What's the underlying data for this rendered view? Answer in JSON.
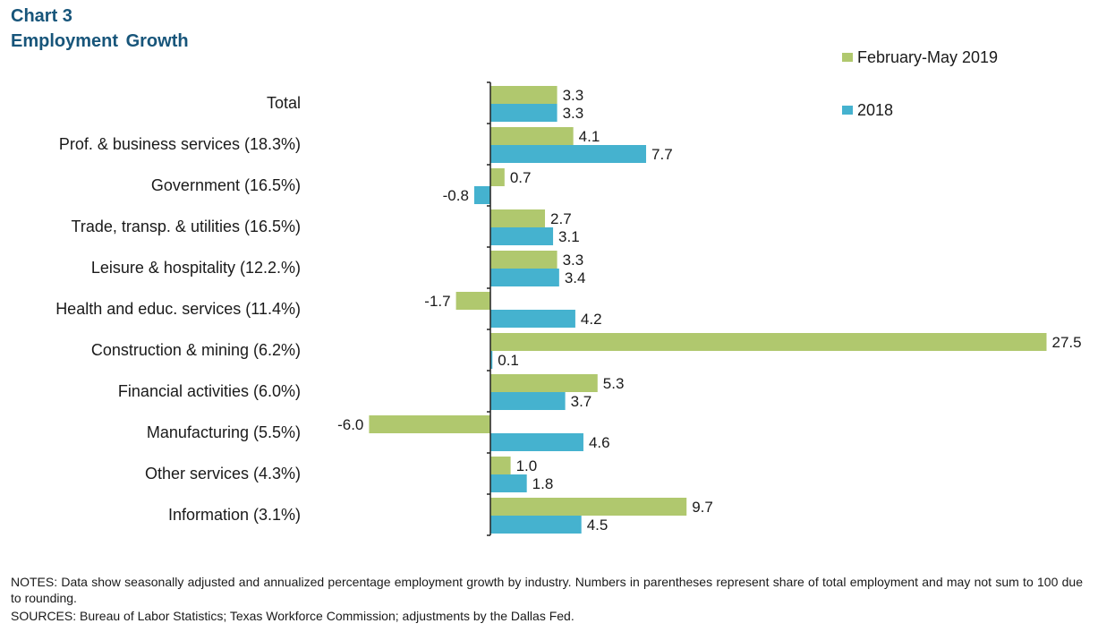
{
  "header": {
    "chart_label": "Chart 3",
    "title": "Employment  Growth"
  },
  "colors": {
    "series_1": "#b0c86e",
    "series_2": "#45b2cf",
    "title": "#17557a",
    "axis": "#222222"
  },
  "chart_data": {
    "type": "bar",
    "orientation": "horizontal",
    "title": "Employment Growth",
    "xlabel": "",
    "ylabel": "",
    "xlim": [
      -6.5,
      27.5
    ],
    "grid": false,
    "legend_position": "top-right",
    "categories": [
      "Total",
      "Prof. & business services (18.3%)",
      "Government (16.5%)",
      "Trade, transp. & utilities (16.5%)",
      "Leisure & hospitality (12.2.%)",
      "Health and educ. services (11.4%)",
      "Construction & mining (6.2%)",
      "Financial activities (6.0%)",
      "Manufacturing (5.5%)",
      "Other services (4.3%)",
      "Information (3.1%)"
    ],
    "series": [
      {
        "name": "February-May 2019",
        "color": "#b0c86e",
        "values": [
          3.3,
          4.1,
          0.7,
          2.7,
          3.3,
          -1.7,
          27.5,
          5.3,
          -6.0,
          1.0,
          9.7
        ],
        "labels": [
          "3.3",
          "4.1",
          "0.7",
          "2.7",
          "3.3",
          "-1.7",
          "27.5",
          "5.3",
          "-6.0",
          "1.0",
          "9.7"
        ]
      },
      {
        "name": "2018",
        "color": "#45b2cf",
        "values": [
          3.3,
          7.7,
          -0.8,
          3.1,
          3.4,
          4.2,
          0.1,
          3.7,
          4.6,
          1.8,
          4.5
        ],
        "labels": [
          "3.3",
          "7.7",
          "-0.8",
          "3.1",
          "3.4",
          "4.2",
          "0.1",
          "3.7",
          "4.6",
          "1.8",
          "4.5"
        ]
      }
    ]
  },
  "footer": {
    "notes": "NOTES: Data show seasonally adjusted and annualized percentage employment growth by industry. Numbers in parentheses represent share of total employment and may not sum to 100 due to rounding.",
    "sources": "SOURCES: Bureau of Labor Statistics; Texas Workforce Commission; adjustments by the Dallas Fed."
  }
}
